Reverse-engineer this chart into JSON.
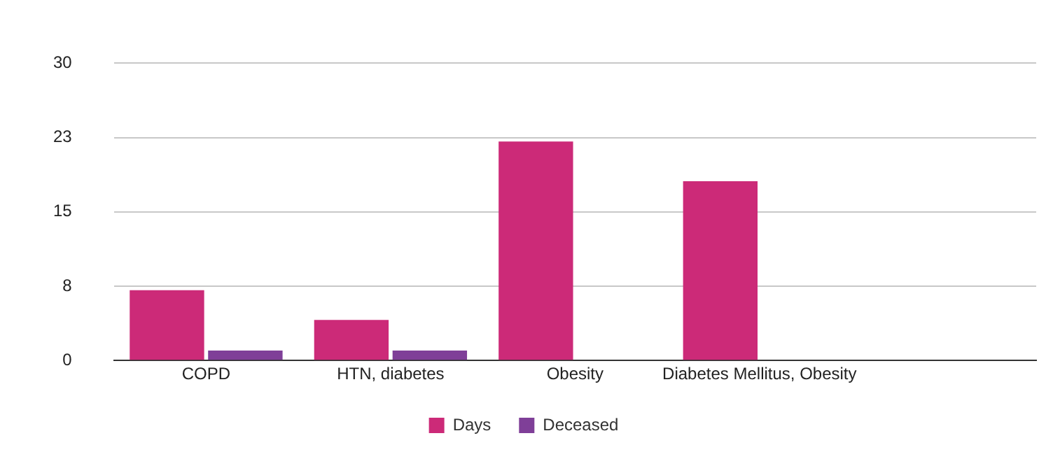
{
  "chart_data": {
    "type": "bar",
    "categories": [
      "COPD",
      "HTN, diabetes",
      "Obesity",
      "Diabetes Mellitus, Obesity",
      null
    ],
    "series": [
      {
        "name": "Days",
        "color": "#cc2a78",
        "values": [
          7.1,
          4.1,
          22.1,
          18.1,
          null
        ]
      },
      {
        "name": "Deceased",
        "color": "#7f3f98",
        "values": [
          1,
          1,
          null,
          null,
          null
        ]
      }
    ],
    "ylim": [
      0,
      30
    ],
    "yticks": [
      0,
      {
        "value": 7.5,
        "label": "8"
      },
      15,
      {
        "value": 22.5,
        "label": "23"
      },
      30
    ],
    "grid": "y",
    "legend": "bottom"
  }
}
